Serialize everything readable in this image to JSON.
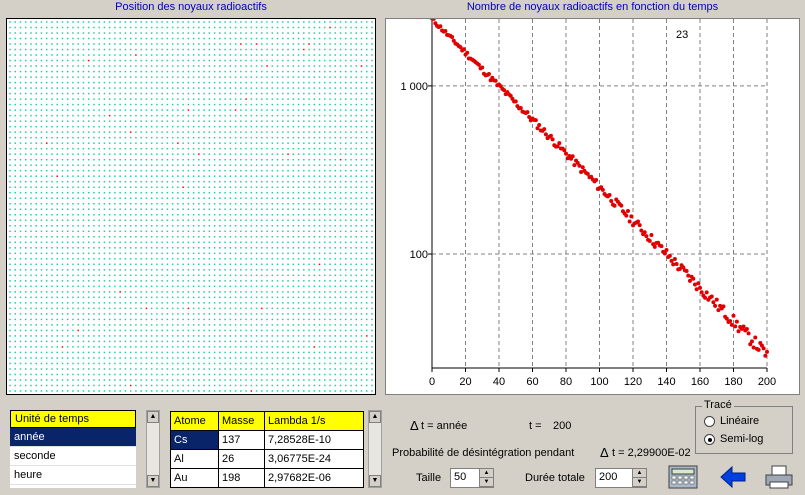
{
  "left_panel": {
    "title": "Position des noyaux radioactifs",
    "grid": {
      "cols": 70,
      "rows": 68,
      "dot_color": "#20d0a0",
      "decayed_color": "#ff0000"
    }
  },
  "chart_panel": {
    "title": "Nombre de noyaux radioactifs en fonction du temps",
    "count_label": "23"
  },
  "chart_data": {
    "type": "scatter",
    "title": "Nombre de noyaux radioactifs en fonction du temps",
    "xlabel": "",
    "ylabel": "",
    "yscale": "log",
    "xlim": [
      0,
      200
    ],
    "ylim": [
      21,
      2500
    ],
    "xticks": [
      "0",
      "20",
      "40",
      "60",
      "80",
      "100",
      "120",
      "140",
      "160",
      "180",
      "200"
    ],
    "yticks": [
      "1 000",
      "100"
    ],
    "ytick_values": [
      1000,
      100
    ],
    "grid": true,
    "series": [
      {
        "color": "#e00000",
        "N0": 2500,
        "lambda": 0.023,
        "x_start": 0,
        "x_end": 200,
        "step": 1
      }
    ]
  },
  "time_unit_list": {
    "header": "Unité de temps",
    "items": [
      "année",
      "seconde",
      "heure"
    ],
    "selected": 0
  },
  "atom_table": {
    "headers": [
      "Atome",
      "Masse",
      "Lambda 1/s"
    ],
    "rows": [
      [
        "Cs",
        "137",
        "7,28528E-10"
      ],
      [
        "Al",
        "26",
        "3,06775E-24"
      ],
      [
        "Au",
        "198",
        "2,97682E-06"
      ]
    ],
    "selected_cell": "Cs"
  },
  "info": {
    "delta_t_label": "t = année",
    "delta_symbol": "Δ",
    "t_label": "t =",
    "t_value": "200",
    "prob_label": "Probabilité de désintégration pendant",
    "prob_delta": "Δ",
    "prob_value": "t = 2,29900E-02"
  },
  "controls": {
    "taille_label": "Taille",
    "taille_value": "50",
    "duree_label": "Durée totale",
    "duree_value": "200"
  },
  "trace_group": {
    "title": "Tracé",
    "options": [
      "Linéaire",
      "Semi-log"
    ],
    "selected": 1
  },
  "icons": [
    "calculator-icon",
    "back-arrow-icon",
    "printer-icon"
  ]
}
